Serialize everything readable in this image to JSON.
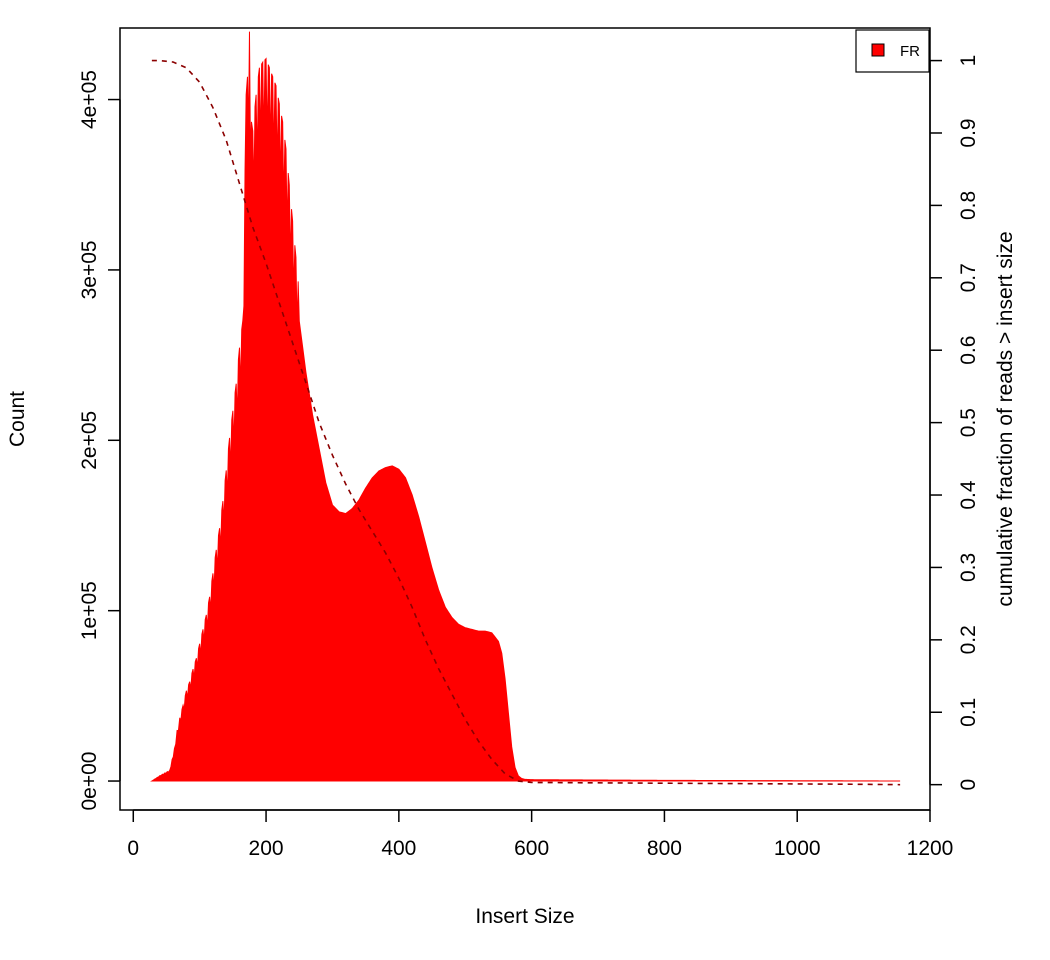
{
  "chart_data": {
    "type": "area",
    "title": "",
    "xlabel": "Insert Size",
    "ylabel": "Count",
    "y2label": "cumulative fraction of reads > insert size",
    "xlim": [
      -20,
      1200
    ],
    "ylim": [
      -17000,
      442000
    ],
    "y2lim": [
      -0.035,
      1.045
    ],
    "x_ticks": [
      0,
      200,
      400,
      600,
      800,
      1000,
      1200
    ],
    "x_tick_labels": [
      "0",
      "200",
      "400",
      "600",
      "800",
      "1000",
      "1200"
    ],
    "y_ticks": [
      0,
      100000,
      200000,
      300000,
      400000
    ],
    "y_tick_labels": [
      "0e+00",
      "1e+05",
      "2e+05",
      "3e+05",
      "4e+05"
    ],
    "y2_ticks": [
      0,
      0.1,
      0.2,
      0.3,
      0.4,
      0.5,
      0.6,
      0.7,
      0.8,
      0.9,
      1
    ],
    "y2_tick_labels": [
      "0",
      "0.1",
      "0.2",
      "0.3",
      "0.4",
      "0.5",
      "0.6",
      "0.7",
      "0.8",
      "0.9",
      "1"
    ],
    "legend": {
      "position": "top-right",
      "entries": [
        {
          "label": "FR",
          "color": "#ff0000"
        }
      ]
    },
    "grid": false,
    "series": [
      {
        "kind": "histogram",
        "color": "#ff0000",
        "x": [
          28,
          40,
          55,
          62,
          66,
          70,
          75,
          80,
          85,
          90,
          95,
          100,
          105,
          110,
          115,
          120,
          125,
          130,
          135,
          140,
          145,
          150,
          155,
          160,
          165,
          170,
          172,
          175,
          178,
          180,
          185,
          190,
          195,
          200,
          205,
          210,
          215,
          220,
          225,
          230,
          235,
          240,
          245,
          250,
          260,
          270,
          280,
          290,
          300,
          310,
          320,
          330,
          340,
          350,
          360,
          370,
          380,
          390,
          400,
          410,
          420,
          430,
          440,
          450,
          460,
          470,
          480,
          490,
          500,
          510,
          520,
          530,
          540,
          550,
          555,
          560,
          565,
          570,
          575,
          580,
          585,
          590,
          600,
          700,
          800,
          900,
          1000,
          1100,
          1155
        ],
        "y": [
          0,
          3000,
          6000,
          18000,
          28000,
          35000,
          42000,
          50000,
          55000,
          62000,
          68000,
          76000,
          84000,
          92000,
          102000,
          115000,
          128000,
          140000,
          155000,
          172000,
          190000,
          205000,
          220000,
          240000,
          255000,
          380000,
          390000,
          415000,
          365000,
          360000,
          380000,
          395000,
          398000,
          400000,
          395000,
          390000,
          385000,
          375000,
          365000,
          350000,
          330000,
          310000,
          290000,
          270000,
          240000,
          215000,
          195000,
          175000,
          162000,
          158000,
          157000,
          160000,
          165000,
          172000,
          178000,
          182000,
          184000,
          185000,
          183000,
          178000,
          168000,
          155000,
          140000,
          125000,
          112000,
          102000,
          96000,
          92000,
          90000,
          89000,
          88000,
          88000,
          87000,
          82000,
          75000,
          60000,
          40000,
          20000,
          8000,
          3000,
          1500,
          1000,
          800,
          600,
          400,
          300,
          200,
          100,
          0
        ]
      },
      {
        "kind": "cumulative",
        "color": "#8b0000",
        "dash": "dashed",
        "x": [
          28,
          40,
          60,
          80,
          100,
          120,
          140,
          160,
          180,
          200,
          220,
          240,
          260,
          280,
          300,
          320,
          340,
          360,
          380,
          400,
          420,
          440,
          460,
          480,
          500,
          520,
          540,
          560,
          580,
          600,
          700,
          800,
          900,
          1000,
          1100,
          1155
        ],
        "y": [
          1,
          1,
          0.998,
          0.99,
          0.97,
          0.935,
          0.89,
          0.83,
          0.77,
          0.72,
          0.665,
          0.61,
          0.555,
          0.5,
          0.455,
          0.415,
          0.38,
          0.35,
          0.32,
          0.285,
          0.245,
          0.2,
          0.16,
          0.125,
          0.09,
          0.06,
          0.035,
          0.015,
          0.005,
          0.003,
          0.0025,
          0.002,
          0.0015,
          0.001,
          0.0005,
          0
        ]
      }
    ]
  }
}
